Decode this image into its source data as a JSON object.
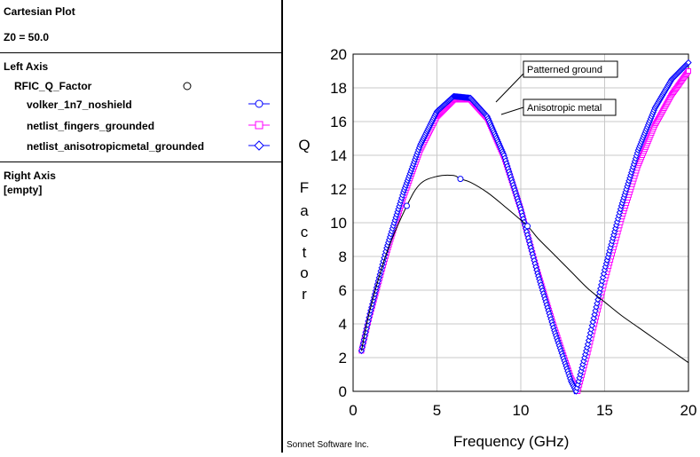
{
  "panel": {
    "title": "Cartesian Plot",
    "z0": "Z0 = 50.0",
    "left_axis": {
      "heading": "Left Axis",
      "group": "RFIC_Q_Factor",
      "traces": [
        {
          "name": "volker_1n7_noshield",
          "marker": "circle",
          "color": "#0000ff"
        },
        {
          "name": "netlist_fingers_grounded",
          "marker": "square",
          "color": "#ff00ff"
        },
        {
          "name": "netlist_anisotropicmetal_grounded",
          "marker": "diamond",
          "color": "#0000ff"
        }
      ]
    },
    "right_axis": {
      "heading": "Right Axis",
      "content": "[empty]"
    }
  },
  "footer": "Sonnet Software Inc.",
  "chart_data": {
    "type": "line",
    "title": "",
    "xlabel": "Frequency (GHz)",
    "ylabel": "Q Factor",
    "xlim": [
      0,
      20
    ],
    "ylim": [
      0,
      20
    ],
    "xticks": [
      0,
      5,
      10,
      15,
      20
    ],
    "yticks": [
      0,
      2,
      4,
      6,
      8,
      10,
      12,
      14,
      16,
      18,
      20
    ],
    "grid": true,
    "annotations": [
      "Patterned ground",
      "Anisotropic metal"
    ],
    "series": [
      {
        "name": "volker_1n7_noshield",
        "color": "#000000",
        "marker": "circle",
        "marker_color": "#0000ff",
        "x": [
          0.5,
          1,
          2,
          3.2,
          4,
          5,
          6,
          6.4,
          7,
          8,
          9,
          10.4,
          11,
          12,
          13,
          14,
          15,
          16,
          17,
          18,
          19,
          20
        ],
        "y": [
          2.4,
          4.8,
          8.2,
          11.0,
          12.3,
          12.75,
          12.8,
          12.6,
          12.4,
          11.8,
          11.0,
          9.8,
          9.1,
          8.1,
          7.1,
          6.1,
          5.3,
          4.5,
          3.8,
          3.1,
          2.4,
          1.7
        ],
        "marked_x": [
          3.2,
          6.4,
          10.4
        ]
      },
      {
        "name": "netlist_fingers_grounded",
        "color": "#ff00ff",
        "marker": "square",
        "x": [
          0.5,
          1,
          2,
          3,
          4,
          5,
          6,
          7,
          8,
          9,
          10,
          11,
          12,
          13,
          13.4,
          14,
          15,
          16,
          17,
          18,
          19,
          20
        ],
        "y": [
          2.4,
          4.5,
          8.2,
          11.5,
          14.3,
          16.3,
          17.3,
          17.3,
          16.2,
          13.9,
          10.8,
          7.1,
          3.8,
          0.8,
          0.0,
          2.3,
          6.5,
          10.2,
          13.4,
          15.8,
          17.6,
          19.0
        ]
      },
      {
        "name": "netlist_anisotropicmetal_grounded",
        "color": "#0000ff",
        "marker": "diamond",
        "x": [
          0.5,
          1,
          2,
          3,
          4,
          5,
          6,
          7,
          8,
          9,
          10,
          11,
          12,
          13,
          13.3,
          14,
          15,
          16,
          17,
          18,
          19,
          20
        ],
        "y": [
          2.4,
          4.6,
          8.5,
          11.8,
          14.6,
          16.6,
          17.5,
          17.4,
          16.3,
          14.0,
          10.8,
          7.0,
          3.6,
          0.6,
          0.0,
          2.8,
          7.2,
          11.0,
          14.3,
          16.8,
          18.5,
          19.5
        ]
      }
    ]
  }
}
